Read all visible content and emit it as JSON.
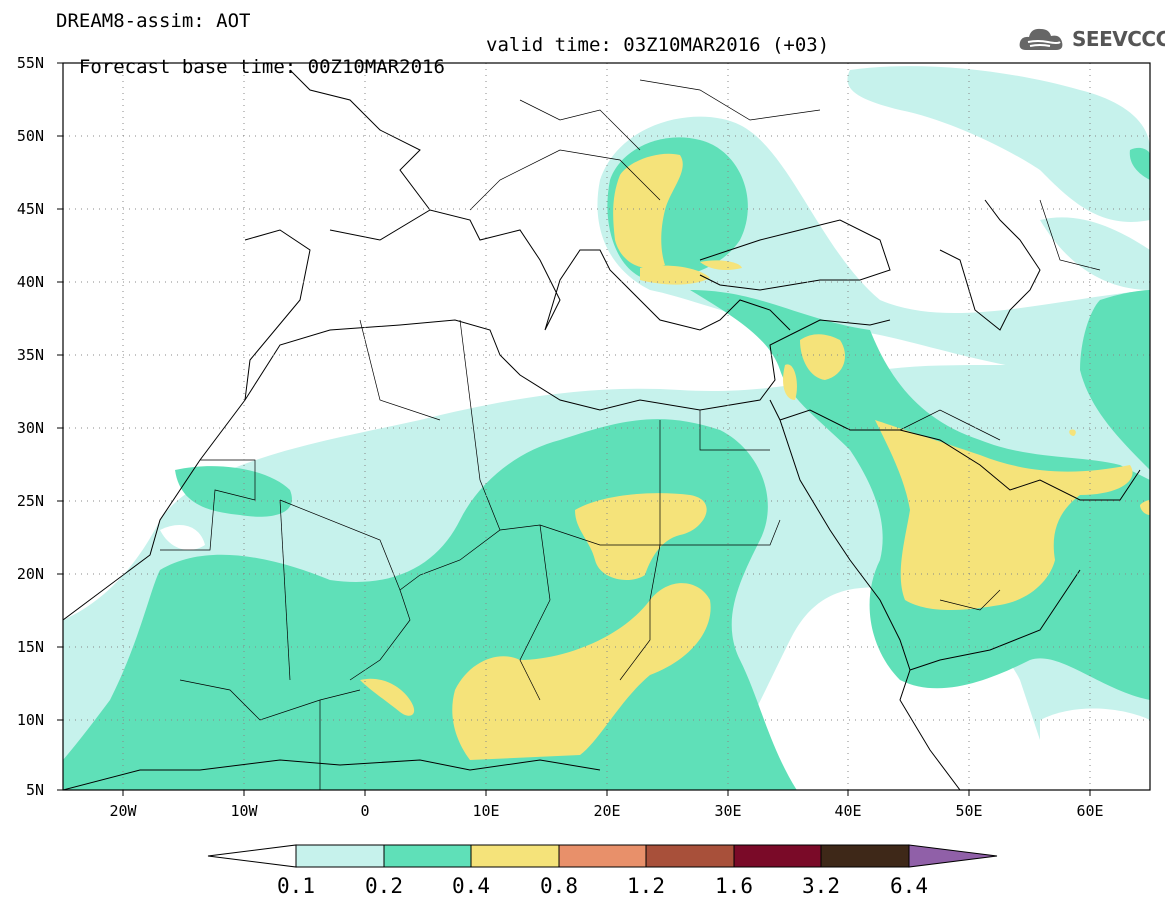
{
  "header": {
    "line1": "DREAM8-assim: AOT",
    "base_time": "Forecast base time: 00Z10MAR2016",
    "valid_time": "valid time: 03Z10MAR2016 (+03)"
  },
  "logo": {
    "text": "SEEVCCC",
    "icon": "cloud-icon"
  },
  "map": {
    "lon_range": [
      -25,
      65
    ],
    "lat_range": [
      5,
      55
    ],
    "lat_labels": [
      "55N",
      "50N",
      "45N",
      "40N",
      "35N",
      "30N",
      "25N",
      "20N",
      "15N",
      "10N",
      "5N"
    ],
    "lon_labels": [
      "20W",
      "10W",
      "0",
      "10E",
      "20E",
      "30E",
      "40E",
      "50E",
      "60E"
    ],
    "grid": "dotted"
  },
  "colorbar": {
    "labels": [
      "0.1",
      "0.2",
      "0.4",
      "0.8",
      "1.2",
      "1.6",
      "3.2",
      "6.4"
    ],
    "colors": [
      "#ffffff",
      "#c6f2ec",
      "#5fe0b8",
      "#f5e37a",
      "#e8906a",
      "#a8503a",
      "#7a0a28",
      "#3e2818",
      "#9060a8"
    ]
  },
  "legend": {
    "c1": "#c6f2ec",
    "c2": "#5fe0b8",
    "c3": "#f5e37a"
  }
}
